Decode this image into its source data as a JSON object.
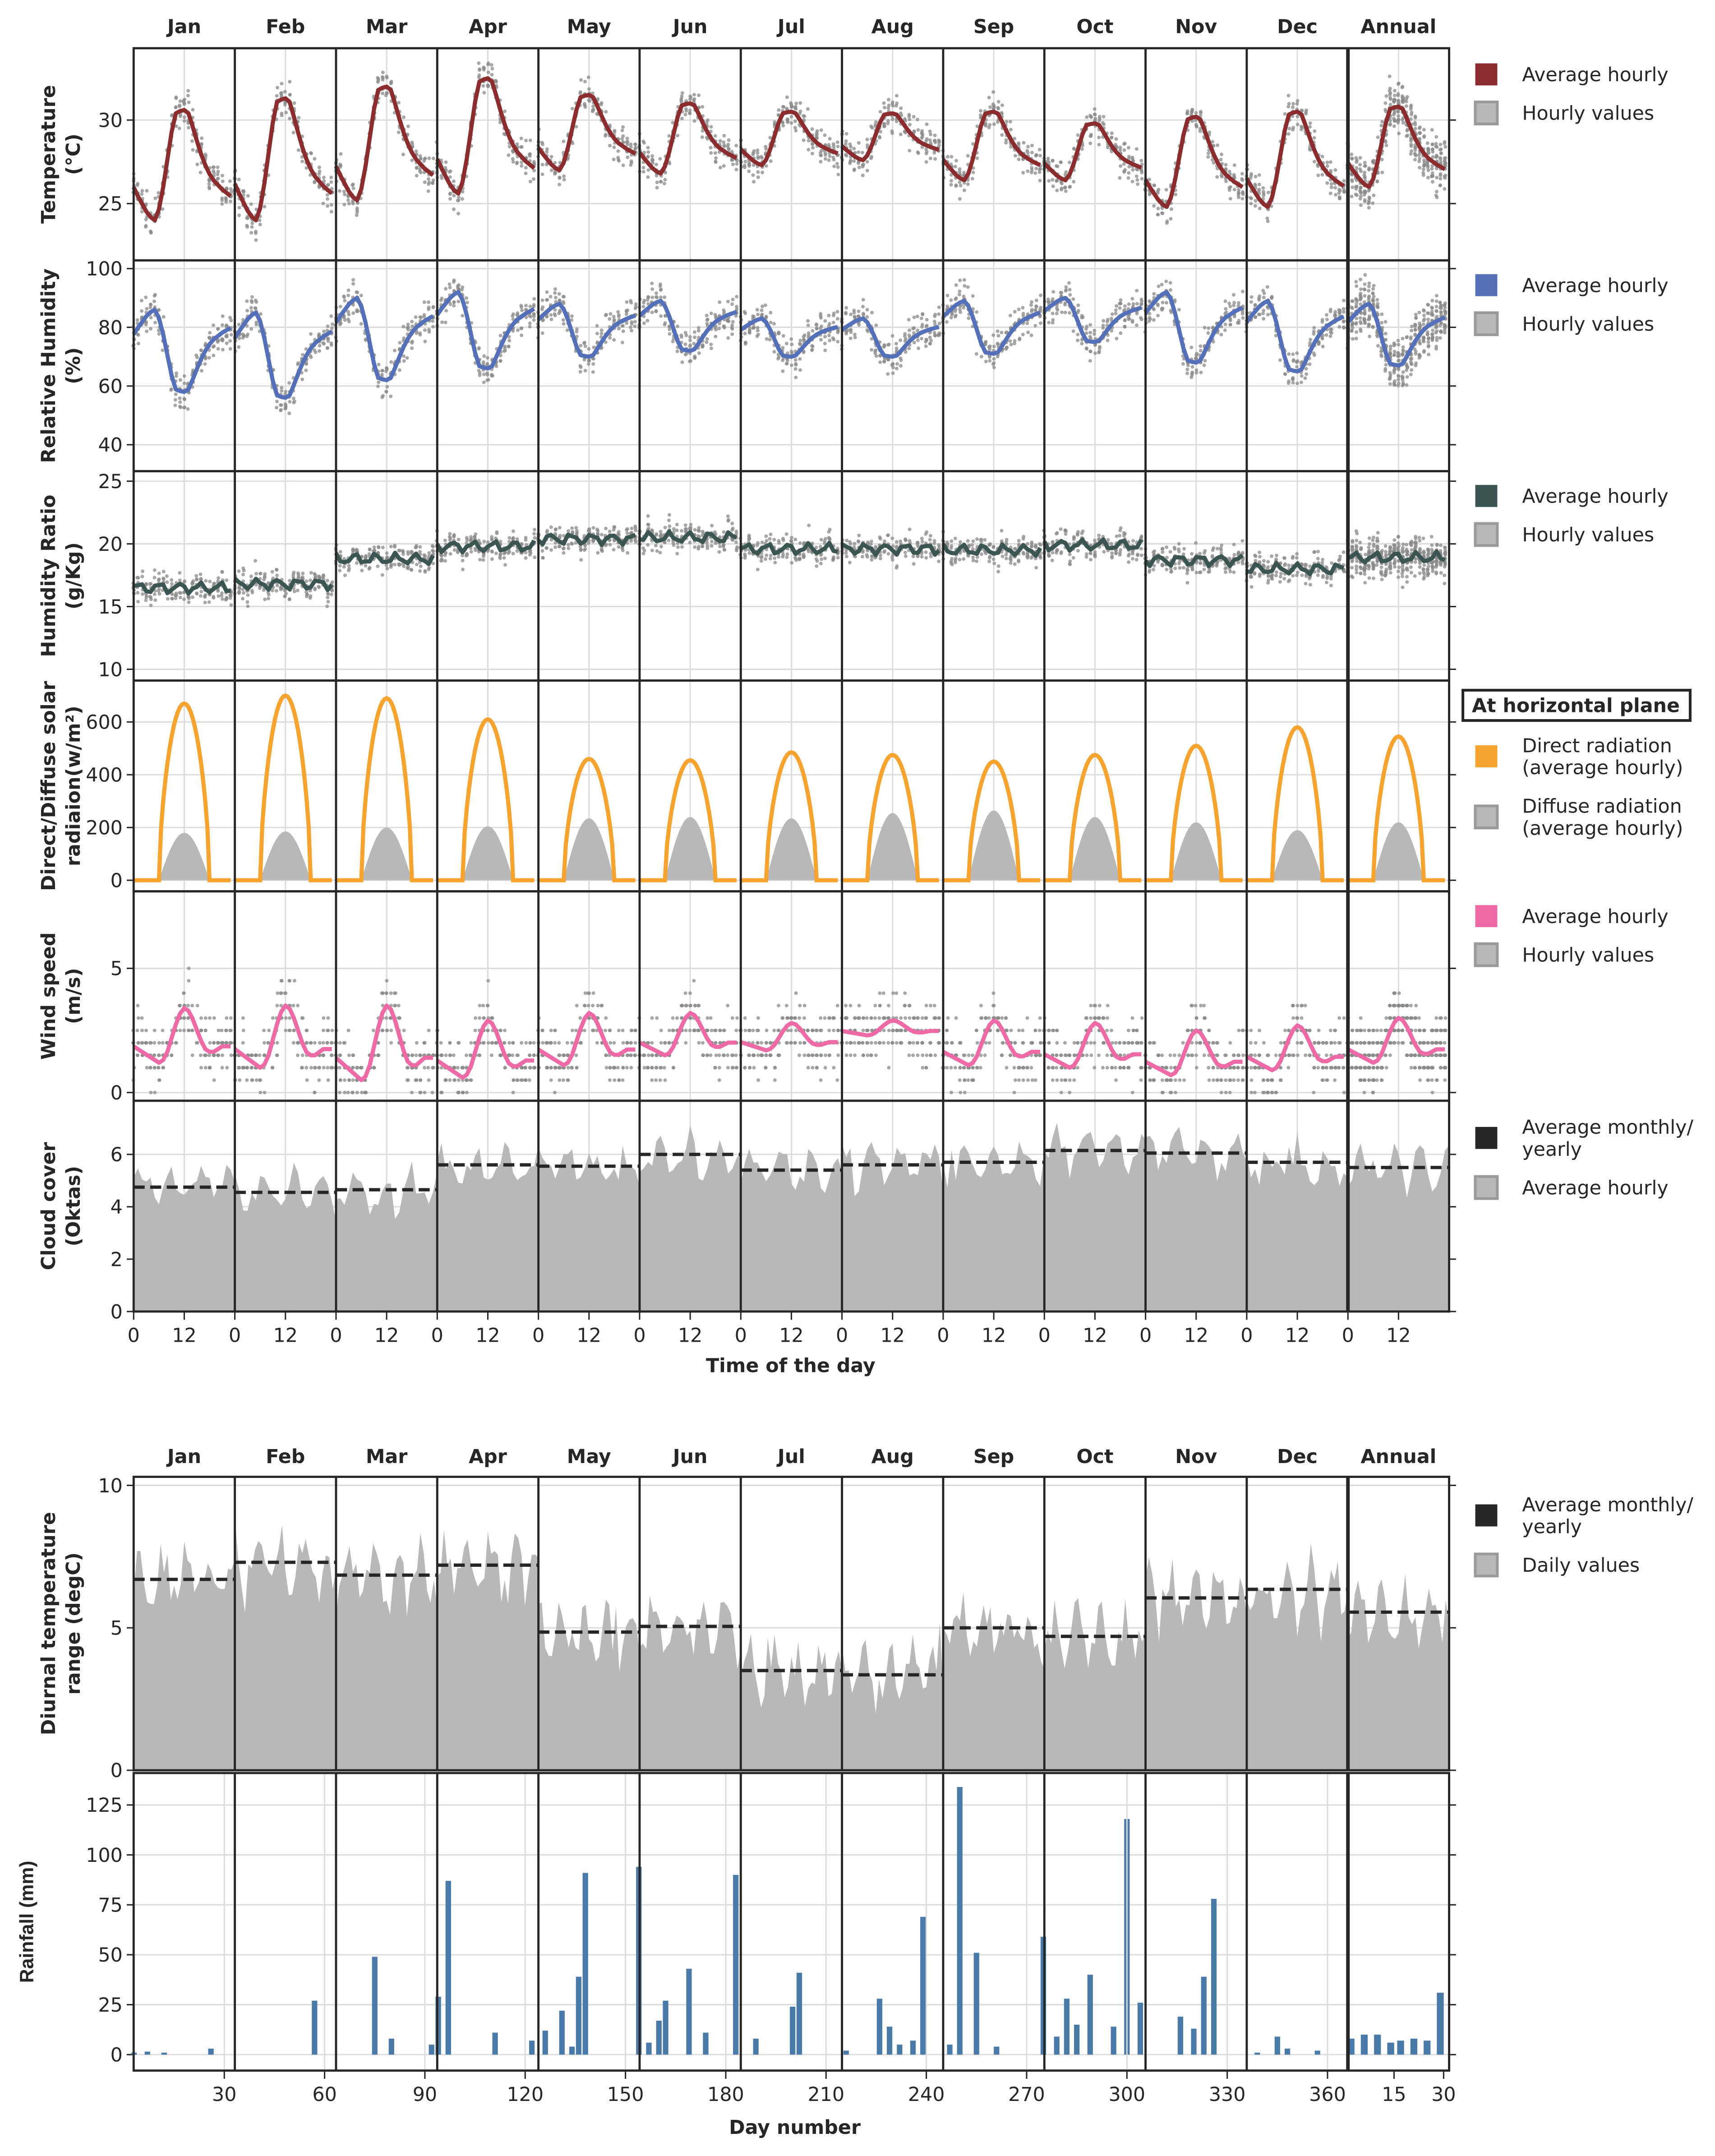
{
  "months": [
    "Jan",
    "Feb",
    "Mar",
    "Apr",
    "May",
    "Jun",
    "Jul",
    "Aug",
    "Sep",
    "Oct",
    "Nov",
    "Dec",
    "Annual"
  ],
  "top_xlabel": "Time of the day",
  "hour_ticks": [
    "0",
    "12"
  ],
  "bottom_xlabel": "Day number",
  "colors": {
    "temperature": "#8b2c2f",
    "humidity": "#5470b8",
    "ratio": "#3b5553",
    "direct": "#f7a330",
    "wind": "#ee6aa7",
    "rain": "#4a7aa7",
    "grey": "#b8b8b8",
    "dots": "#8a8a8a",
    "dash": "#262626"
  },
  "chart_data": [
    {
      "type": "line",
      "id": "temperature",
      "ylabel": [
        "Temperature",
        "(°C)"
      ],
      "ylim": [
        21.6,
        34.3
      ],
      "yticks": [
        25,
        30
      ],
      "legend": [
        "Average hourly",
        "Hourly values"
      ],
      "average_hourly_min": [
        24.0,
        24.0,
        25.2,
        25.6,
        27.0,
        26.8,
        27.3,
        27.6,
        26.4,
        26.4,
        24.8,
        24.8,
        26.0
      ],
      "average_hourly_max": [
        30.6,
        31.3,
        32.0,
        32.5,
        31.5,
        31.0,
        30.5,
        30.4,
        30.5,
        29.8,
        30.2,
        30.5,
        30.8
      ],
      "diurnal_profile": [
        0.3,
        0.22,
        0.15,
        0.08,
        0.03,
        0,
        0.1,
        0.3,
        0.55,
        0.8,
        0.97,
        0.99,
        1.0,
        0.97,
        0.85,
        0.72,
        0.6,
        0.5,
        0.42,
        0.36,
        0.32,
        0.28,
        0.25,
        0.22
      ],
      "scatter_spread": 1.6
    },
    {
      "type": "line",
      "id": "humidity",
      "ylabel": [
        "Relative Humidity",
        "(%)"
      ],
      "ylim": [
        31,
        102.8
      ],
      "yticks": [
        40,
        60,
        80,
        100
      ],
      "legend": [
        "Average hourly",
        "Hourly values"
      ],
      "average_hourly_min": [
        58,
        56,
        62,
        66,
        70,
        72,
        70,
        70,
        71,
        75,
        68,
        65,
        67
      ],
      "average_hourly_max": [
        86,
        85,
        90,
        92,
        88,
        89,
        83,
        83,
        89,
        90,
        92,
        89,
        88
      ],
      "scatter_spread": 9
    },
    {
      "type": "line",
      "id": "ratio",
      "ylabel": [
        "Humidity Ratio",
        "(g/Kg)"
      ],
      "ylim": [
        9.1,
        25.8
      ],
      "yticks": [
        10,
        15,
        20,
        25
      ],
      "legend": [
        "Average hourly",
        "Hourly values"
      ],
      "average_hourly_mean": [
        16.5,
        16.8,
        18.8,
        19.8,
        20.4,
        20.5,
        19.6,
        19.6,
        19.5,
        19.9,
        18.7,
        18.0,
        18.9
      ],
      "scatter_spread": 1.6
    },
    {
      "type": "area",
      "id": "solar",
      "ylabel": [
        "Direct/Diffuse solar",
        "radiaion(w/m²)"
      ],
      "ylim": [
        -42,
        757
      ],
      "yticks": [
        0,
        200,
        400,
        600
      ],
      "legend_title": "At horizontal plane",
      "legend": [
        [
          "Direct radiation",
          "(average hourly)"
        ],
        [
          "Diffuse radiation",
          "(average hourly)"
        ]
      ],
      "sunrise_hour": 6,
      "sunset_hour": 18,
      "direct_peak": [
        670,
        700,
        690,
        610,
        460,
        455,
        485,
        475,
        450,
        475,
        510,
        580,
        545
      ],
      "diffuse_peak": [
        180,
        185,
        200,
        205,
        235,
        240,
        235,
        255,
        265,
        240,
        220,
        190,
        220
      ]
    },
    {
      "type": "line",
      "id": "wind",
      "ylabel": [
        "Wind speed",
        "(m/s)"
      ],
      "ylim": [
        -0.33,
        8.1
      ],
      "yticks": [
        0,
        5
      ],
      "legend": [
        "Average hourly",
        "Hourly values"
      ],
      "average_hourly_min": [
        1.2,
        1.0,
        0.5,
        0.6,
        1.1,
        1.5,
        1.7,
        2.3,
        1.1,
        1.0,
        0.7,
        0.9,
        1.2
      ],
      "average_hourly_max": [
        3.4,
        3.5,
        3.5,
        2.9,
        3.2,
        3.2,
        2.8,
        2.9,
        2.9,
        2.8,
        2.5,
        2.7,
        3.0
      ],
      "diurnal_profile": [
        0.3,
        0.25,
        0.2,
        0.15,
        0.1,
        0.05,
        0,
        0.05,
        0.2,
        0.45,
        0.7,
        0.9,
        1,
        0.95,
        0.8,
        0.6,
        0.4,
        0.25,
        0.2,
        0.2,
        0.25,
        0.3,
        0.3,
        0.3
      ],
      "scatter_spread": 1.5
    },
    {
      "type": "area",
      "id": "cloud",
      "ylabel": [
        "Cloud cover",
        "(Oktas)"
      ],
      "ylim": [
        0,
        8.05
      ],
      "yticks": [
        0,
        2,
        4,
        6
      ],
      "legend": [
        [
          "Average monthly/",
          "yearly"
        ],
        [
          "Average hourly"
        ]
      ],
      "monthly_average": [
        4.75,
        4.55,
        4.65,
        5.6,
        5.55,
        6.0,
        5.4,
        5.6,
        5.7,
        6.15,
        6.05,
        5.7,
        5.5
      ]
    },
    {
      "type": "area",
      "id": "diurnal",
      "ylabel": [
        "Diurnal temperature",
        "range (degC)"
      ],
      "ylim": [
        0,
        10.3
      ],
      "yticks": [
        0,
        5,
        10
      ],
      "legend": [
        [
          "Average monthly/",
          "yearly"
        ],
        [
          "Daily values"
        ]
      ],
      "monthly_average": [
        6.7,
        7.3,
        6.85,
        7.2,
        4.85,
        5.05,
        3.5,
        3.35,
        5.0,
        4.7,
        6.05,
        6.35,
        5.55
      ]
    },
    {
      "type": "bar",
      "id": "rainfall",
      "ylabel": [
        "Rainfall (mm)"
      ],
      "ylim": [
        -8,
        141
      ],
      "yticks": [
        0,
        25,
        50,
        75,
        100,
        125
      ],
      "xticks": [
        30,
        60,
        90,
        120,
        150,
        180,
        210,
        240,
        270,
        300,
        330,
        360
      ],
      "annual_xticks": [
        15,
        30
      ],
      "bars_day_mm": [
        [
          3,
          1
        ],
        [
          7,
          1.5
        ],
        [
          12,
          1
        ],
        [
          26,
          3
        ],
        [
          57,
          27
        ],
        [
          75,
          49
        ],
        [
          80,
          8
        ],
        [
          92,
          5
        ],
        [
          94,
          29
        ],
        [
          97,
          87
        ],
        [
          111,
          11
        ],
        [
          122,
          7
        ],
        [
          126,
          12
        ],
        [
          131,
          22
        ],
        [
          134,
          4
        ],
        [
          136,
          39
        ],
        [
          138,
          91
        ],
        [
          154,
          94
        ],
        [
          157,
          6
        ],
        [
          160,
          17
        ],
        [
          162,
          27
        ],
        [
          169,
          43
        ],
        [
          174,
          11
        ],
        [
          183,
          90
        ],
        [
          189,
          8
        ],
        [
          200,
          24
        ],
        [
          202,
          41
        ],
        [
          216,
          2
        ],
        [
          226,
          28
        ],
        [
          229,
          14
        ],
        [
          232,
          5
        ],
        [
          236,
          7
        ],
        [
          239,
          69
        ],
        [
          247,
          5
        ],
        [
          250,
          134
        ],
        [
          255,
          51
        ],
        [
          261,
          4
        ],
        [
          275,
          59
        ],
        [
          279,
          9
        ],
        [
          282,
          28
        ],
        [
          285,
          15
        ],
        [
          289,
          40
        ],
        [
          296,
          14
        ],
        [
          300,
          118
        ],
        [
          304,
          26
        ],
        [
          316,
          19
        ],
        [
          320,
          13
        ],
        [
          323,
          39
        ],
        [
          326,
          78
        ],
        [
          339,
          1
        ],
        [
          345,
          9
        ],
        [
          348,
          3
        ],
        [
          357,
          2
        ]
      ],
      "annual_bars_day_mm": [
        [
          2,
          8
        ],
        [
          6,
          10
        ],
        [
          10,
          10
        ],
        [
          14,
          6
        ],
        [
          17,
          7
        ],
        [
          21,
          8
        ],
        [
          25,
          7
        ],
        [
          29,
          31
        ]
      ]
    }
  ]
}
